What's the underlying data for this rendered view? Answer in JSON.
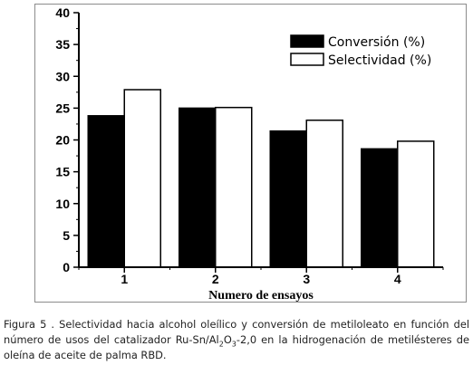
{
  "chart_data": {
    "type": "bar",
    "title": "",
    "xlabel": "Numero de ensayos",
    "ylabel": "",
    "categories": [
      "1",
      "2",
      "3",
      "4"
    ],
    "ylim": [
      0,
      40
    ],
    "yticks": [
      "0",
      "5",
      "10",
      "15",
      "20",
      "25",
      "30",
      "35",
      "40"
    ],
    "grid": false,
    "legend_position": "top-right",
    "series": [
      {
        "name": "Conversión  (%)",
        "values": [
          23.8,
          25.0,
          21.4,
          18.6
        ],
        "color": "#000000"
      },
      {
        "name": "Selectividad (%)",
        "values": [
          27.9,
          25.1,
          23.1,
          19.8
        ],
        "color": "#ffffff"
      }
    ]
  },
  "caption": {
    "prefix": "Figura 5  . Selectividad hacia alcohol oleílico y conversión de metiloleato en función del número de usos del catalizador Ru-Sn/Al",
    "sub1": "2",
    "mid": "O",
    "sub2": "3",
    "suffix": "-2,0 en la hidrogenación de metilésteres de oleína de aceite de palma RBD."
  }
}
